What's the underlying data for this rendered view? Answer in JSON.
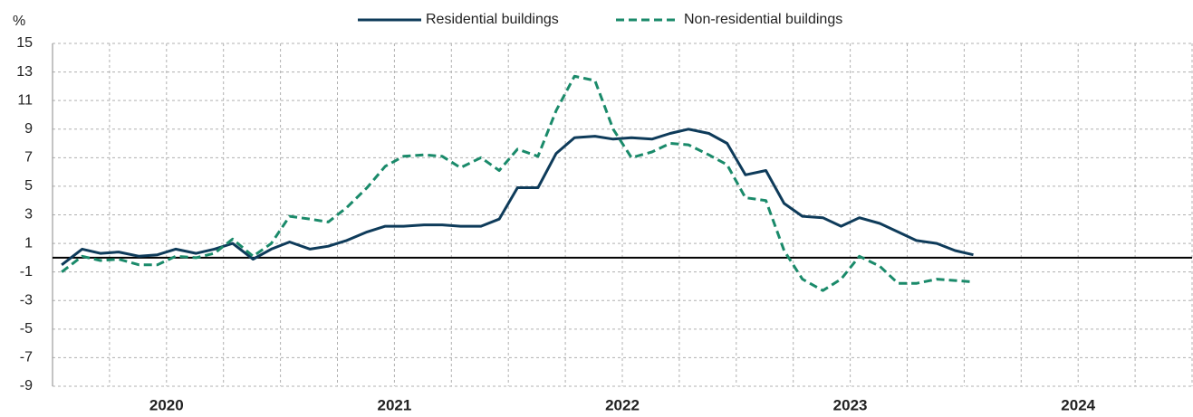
{
  "chart_data": {
    "type": "line",
    "y_unit": "%",
    "categories": [
      "2020",
      "2021",
      "2022",
      "2023",
      "2024"
    ],
    "x": [
      2020.04,
      2020.13,
      2020.21,
      2020.29,
      2020.38,
      2020.46,
      2020.54,
      2020.63,
      2020.71,
      2020.79,
      2020.88,
      2020.96,
      2021.04,
      2021.13,
      2021.21,
      2021.29,
      2021.38,
      2021.46,
      2021.54,
      2021.63,
      2021.71,
      2021.79,
      2021.88,
      2021.96,
      2022.04,
      2022.13,
      2022.21,
      2022.29,
      2022.38,
      2022.46,
      2022.54,
      2022.63,
      2022.71,
      2022.79,
      2022.88,
      2022.96,
      2023.04,
      2023.13,
      2023.21,
      2023.29,
      2023.38,
      2023.46,
      2023.54,
      2023.63,
      2023.71,
      2023.79,
      2023.88,
      2023.96,
      2024.04
    ],
    "series": [
      {
        "name": "Residential buildings",
        "color": "#0e3b5a",
        "dash": false,
        "values": [
          -0.5,
          0.6,
          0.3,
          0.4,
          0.1,
          0.2,
          0.6,
          0.3,
          0.6,
          1.0,
          -0.1,
          0.6,
          1.1,
          0.6,
          0.8,
          1.2,
          1.8,
          2.2,
          2.2,
          2.3,
          2.3,
          2.2,
          2.2,
          2.7,
          4.9,
          4.9,
          7.3,
          8.4,
          8.5,
          8.3,
          8.4,
          8.3,
          8.7,
          9.0,
          8.7,
          8.0,
          5.8,
          6.1,
          3.8,
          2.9,
          2.8,
          2.2,
          2.8,
          2.4,
          1.8,
          1.2,
          1.0,
          0.5,
          0.2
        ]
      },
      {
        "name": "Non-residential buildings",
        "color": "#1a8a6a",
        "dash": true,
        "values": [
          -1.0,
          0.1,
          -0.2,
          -0.1,
          -0.5,
          -0.5,
          0.1,
          0.0,
          0.3,
          1.3,
          0.1,
          1.0,
          2.9,
          2.7,
          2.5,
          3.5,
          4.9,
          6.4,
          7.1,
          7.2,
          7.1,
          6.3,
          7.0,
          6.1,
          7.6,
          7.1,
          10.3,
          12.7,
          12.4,
          9.0,
          7.0,
          7.4,
          8.0,
          7.9,
          7.2,
          6.5,
          4.2,
          4.0,
          0.5,
          -1.5,
          -2.3,
          -1.5,
          0.1,
          -0.6,
          -1.8,
          -1.8,
          -1.5,
          -1.6,
          -1.7
        ]
      }
    ],
    "xlim": [
      2020,
      2025
    ],
    "xgrid": [
      2020,
      2020.25,
      2020.5,
      2020.75,
      2021,
      2021.25,
      2021.5,
      2021.75,
      2022,
      2022.25,
      2022.5,
      2022.75,
      2023,
      2023.25,
      2023.5,
      2023.75,
      2024,
      2024.25,
      2024.5,
      2024.75,
      2025
    ],
    "ylim": [
      -9,
      15
    ],
    "yticks": [
      15,
      13,
      11,
      9,
      7,
      5,
      3,
      1,
      -1,
      -3,
      -5,
      -7,
      -9
    ],
    "grid": true,
    "legend": "top"
  }
}
